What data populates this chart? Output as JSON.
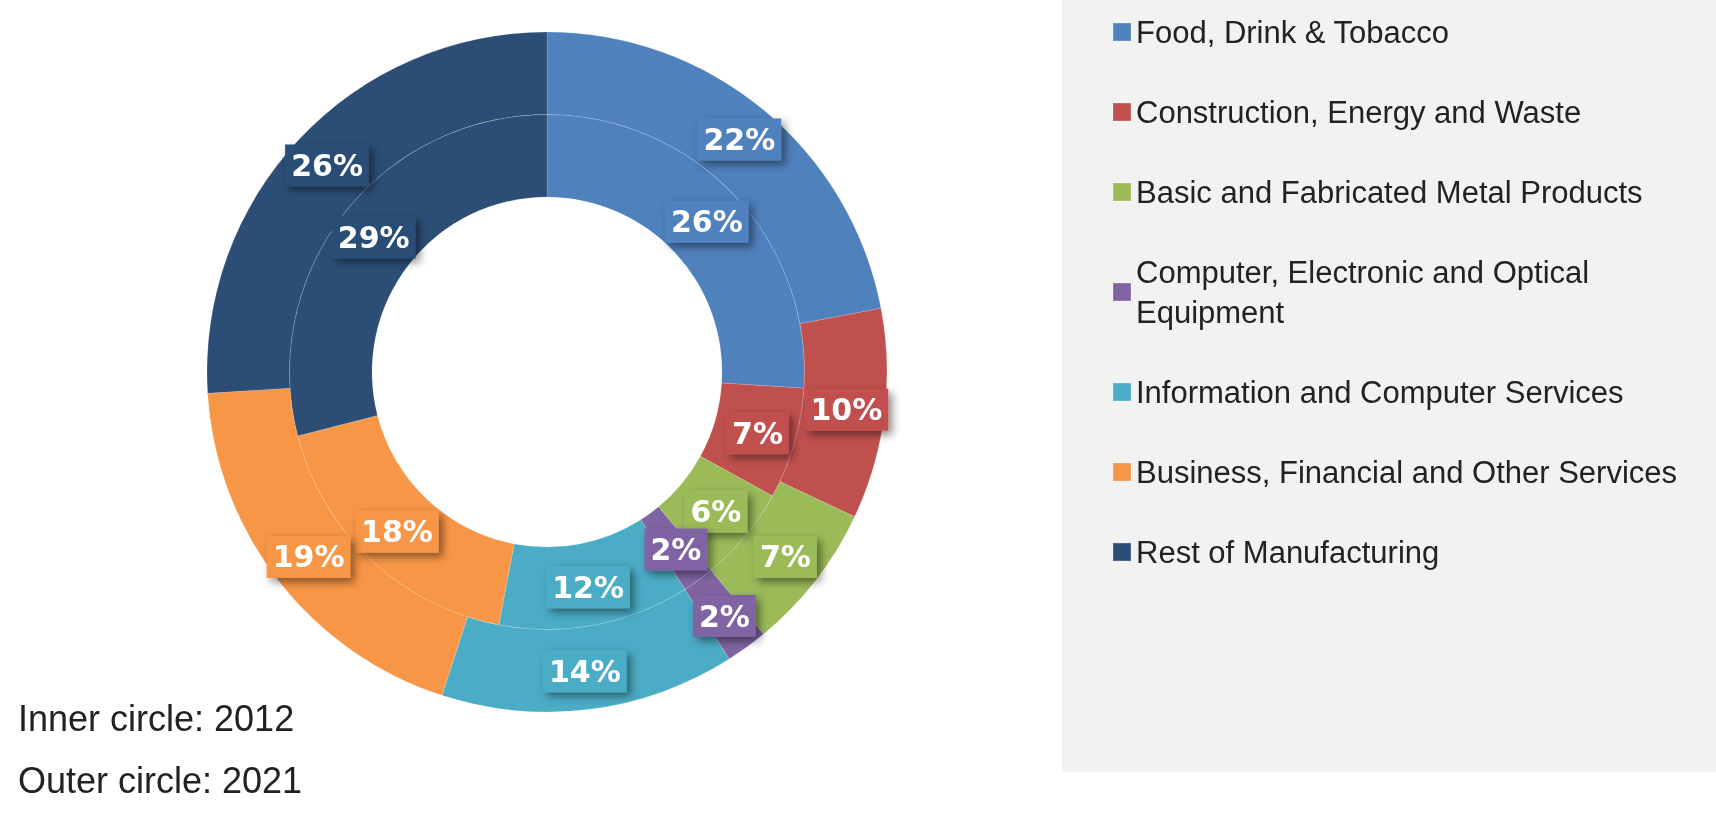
{
  "chart_data": {
    "type": "donut",
    "categories": [
      "Food, Drink & Tobacco",
      "Construction, Energy and Waste",
      "Basic and Fabricated Metal Products",
      "Computer, Electronic and Optical Equipment",
      "Information and Computer Services",
      "Business, Financial and Other Services",
      "Rest of Manufacturing"
    ],
    "colors": [
      "#4f81bd",
      "#c0504d",
      "#9bbb59",
      "#8064a2",
      "#4bacc6",
      "#f79646",
      "#2c4d75"
    ],
    "series": [
      {
        "values": [
          26,
          7,
          6,
          2,
          12,
          18,
          29
        ],
        "value_labels": [
          "26%",
          "7%",
          "6%",
          "2%",
          "12%",
          "18%",
          "29%"
        ]
      },
      {
        "values": [
          22,
          10,
          7,
          2,
          14,
          19,
          26
        ],
        "value_labels": [
          "22%",
          "10%",
          "7%",
          "2%",
          "14%",
          "19%",
          "26%"
        ]
      }
    ],
    "legend": "right",
    "annotations": [
      "Inner circle: 2012",
      "Outer circle: 2021"
    ]
  }
}
